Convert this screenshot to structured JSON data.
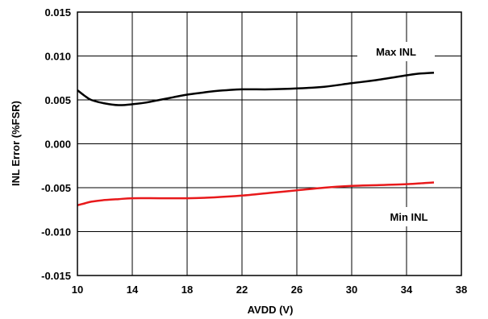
{
  "chart_data": {
    "type": "line",
    "title": "",
    "xlabel": "AVDD (V)",
    "ylabel": "INL Error (%FSR)",
    "xlim": [
      10,
      38
    ],
    "ylim": [
      -0.015,
      0.015
    ],
    "x_ticks": [
      "10",
      "14",
      "18",
      "22",
      "26",
      "30",
      "34",
      "38"
    ],
    "y_ticks": [
      "0.015",
      "0.010",
      "0.005",
      "0.000",
      "-0.005",
      "-0.010",
      "-0.015"
    ],
    "grid": true,
    "series": [
      {
        "name": "Max INL",
        "color": "#000000",
        "x": [
          10,
          10.5,
          11,
          12,
          13,
          14,
          15,
          16,
          17,
          18,
          19,
          20,
          22,
          24,
          26,
          28,
          30,
          32,
          34,
          35,
          36
        ],
        "y": [
          0.0061,
          0.0055,
          0.005,
          0.0046,
          0.0044,
          0.0045,
          0.0047,
          0.005,
          0.0053,
          0.0056,
          0.0058,
          0.006,
          0.0062,
          0.0062,
          0.0063,
          0.0065,
          0.0069,
          0.0073,
          0.0078,
          0.008,
          0.0081
        ]
      },
      {
        "name": "Min INL",
        "color": "#e8191b",
        "x": [
          10,
          10.5,
          11,
          12,
          13,
          14,
          16,
          18,
          20,
          22,
          24,
          26,
          28,
          30,
          32,
          34,
          35,
          36
        ],
        "y": [
          -0.007,
          -0.0068,
          -0.0066,
          -0.0064,
          -0.0063,
          -0.0062,
          -0.0062,
          -0.0062,
          -0.0061,
          -0.0059,
          -0.0056,
          -0.0053,
          -0.005,
          -0.0048,
          -0.0047,
          -0.0046,
          -0.0045,
          -0.0044
        ]
      }
    ],
    "annotations": [
      "Max INL",
      "Min INL"
    ]
  }
}
